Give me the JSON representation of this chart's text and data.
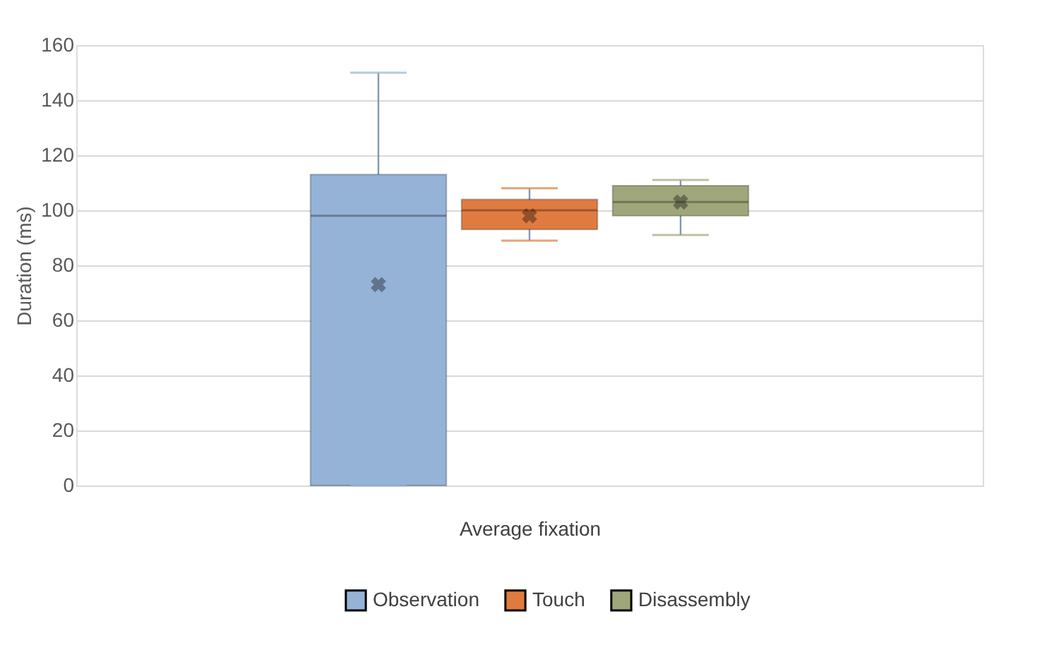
{
  "chart_data": {
    "type": "box",
    "xlabel": "Average fixation",
    "ylabel": "Duration (ms)",
    "categories": [
      null
    ],
    "series": [
      {
        "name": "Observation",
        "color": "#95b3d7",
        "boxes": [
          {
            "low": 0,
            "q1": 0,
            "median": 98,
            "q3": 113,
            "high": 150,
            "mean": 73
          }
        ]
      },
      {
        "name": "Touch",
        "color": "#e07b40",
        "boxes": [
          {
            "low": 89,
            "q1": 93,
            "median": 100,
            "q3": 104,
            "high": 108,
            "mean": 98
          }
        ]
      },
      {
        "name": "Disassembly",
        "color": "#9fa67a",
        "boxes": [
          {
            "low": 91,
            "q1": 98,
            "median": 103,
            "q3": 109,
            "high": 111,
            "mean": 103
          }
        ]
      }
    ],
    "ylim": [
      0,
      160
    ],
    "yticks": [
      0,
      20,
      40,
      60,
      80,
      100,
      120,
      140,
      160
    ],
    "grid": "y",
    "legend": "bottom",
    "tick_labels": "y"
  }
}
